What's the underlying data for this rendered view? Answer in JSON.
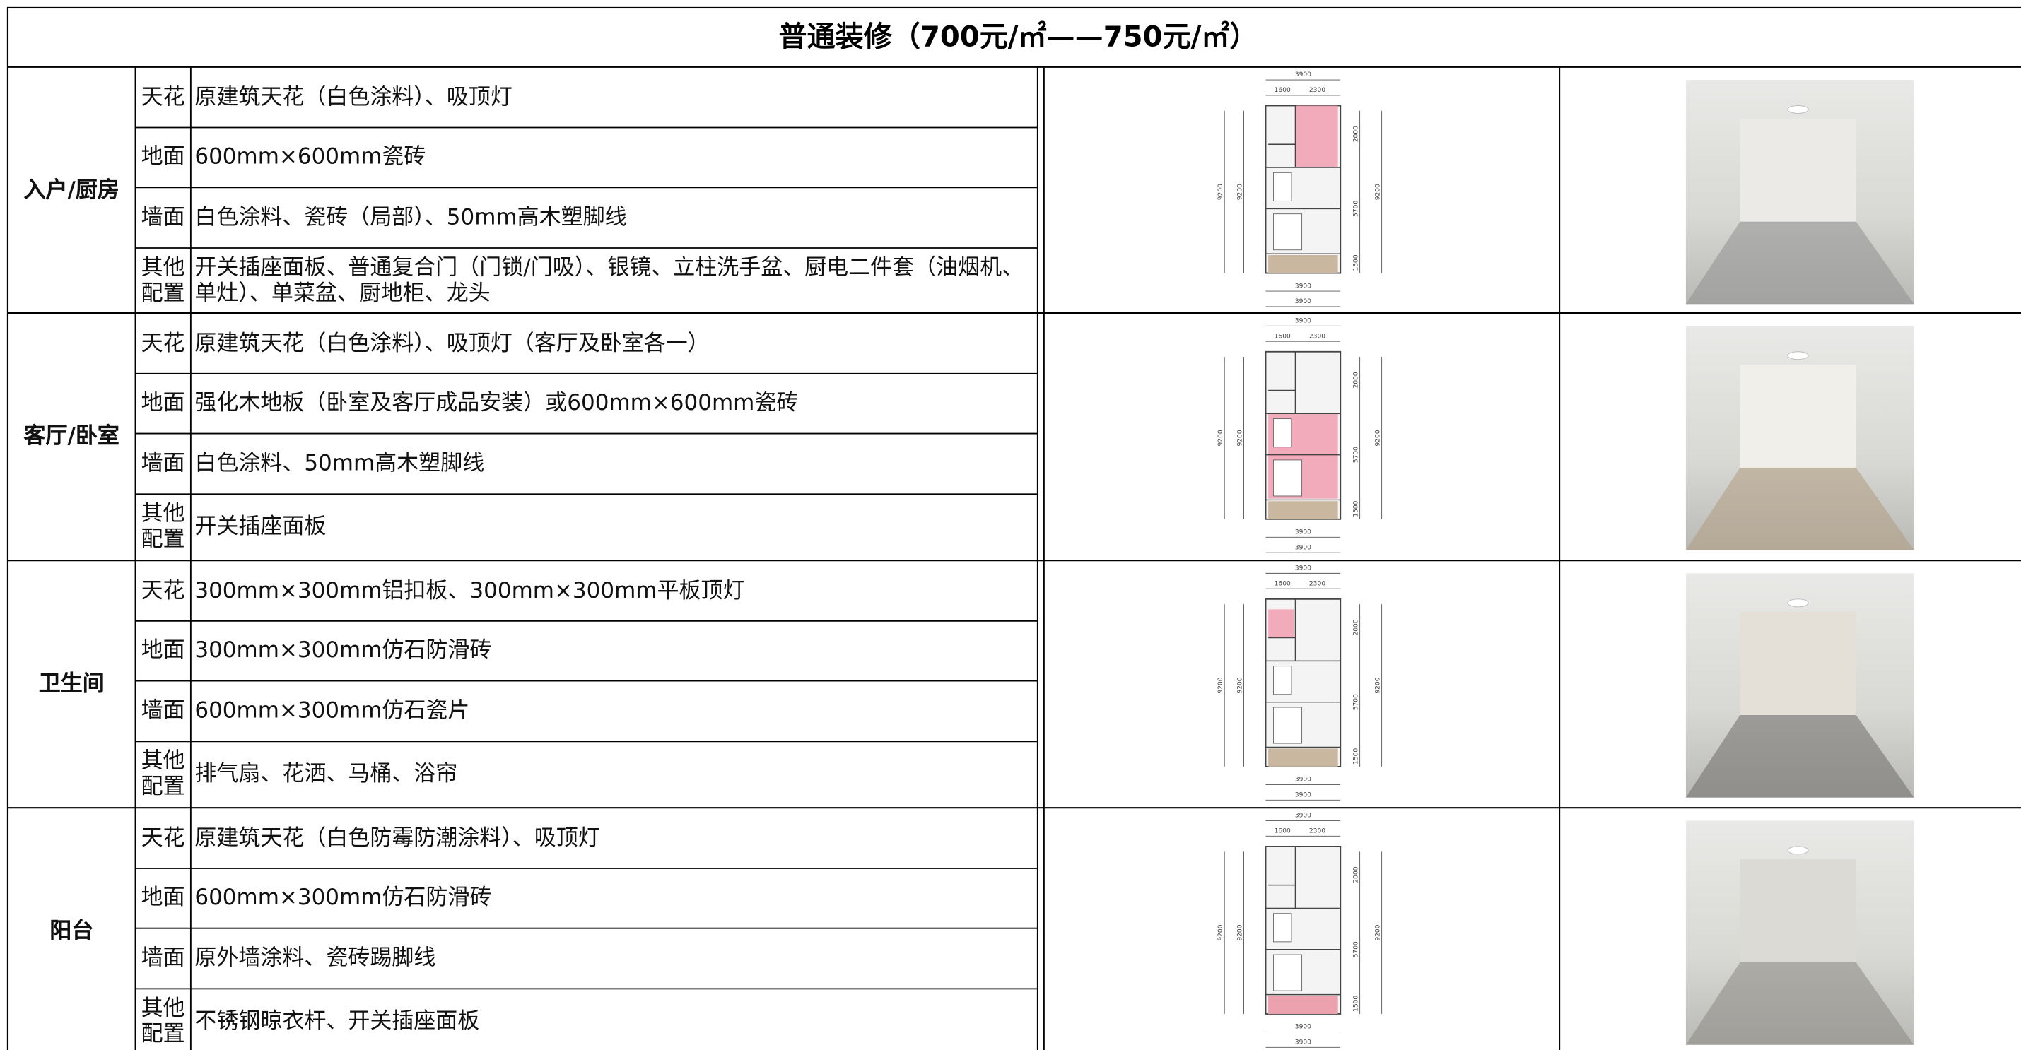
{
  "title": "普通装修（700元/㎡——750元/㎡）",
  "plan_dims": {
    "total_width": "3900",
    "left_width": "1600",
    "right_width": "2300",
    "total_height": "9200",
    "segments": [
      "2000",
      "5700",
      "1500"
    ]
  },
  "sections": [
    {
      "area": "入户/厨房",
      "items": [
        {
          "type": "天花",
          "content": "原建筑天花（白色涂料）、吸顶灯"
        },
        {
          "type": "地面",
          "content": "600mm×600mm瓷砖"
        },
        {
          "type": "墙面",
          "content": "白色涂料、瓷砖（局部）、50mm高木塑脚线"
        },
        {
          "type": "其他配置",
          "content": "开关插座面板、普通复合门（门锁/门吸）、银镜、立柱洗手盆、厨电二件套（油烟机、单灶）、单菜盆、厨地柜、龙头"
        }
      ]
    },
    {
      "area": "客厅/卧室",
      "items": [
        {
          "type": "天花",
          "content": "原建筑天花（白色涂料）、吸顶灯（客厅及卧室各一）"
        },
        {
          "type": "地面",
          "content": "强化木地板（卧室及客厅成品安装）或600mm×600mm瓷砖"
        },
        {
          "type": "墙面",
          "content": "白色涂料、50mm高木塑脚线"
        },
        {
          "type": "其他配置",
          "content": "开关插座面板"
        }
      ]
    },
    {
      "area": "卫生间",
      "items": [
        {
          "type": "天花",
          "content": "300mm×300mm铝扣板、300mm×300mm平板顶灯"
        },
        {
          "type": "地面",
          "content": "300mm×300mm仿石防滑砖"
        },
        {
          "type": "墙面",
          "content": "600mm×300mm仿石瓷片"
        },
        {
          "type": "其他配置",
          "content": "排气扇、花洒、马桶、浴帘"
        }
      ]
    },
    {
      "area": "阳台",
      "items": [
        {
          "type": "天花",
          "content": "原建筑天花（白色防霉防潮涂料）、吸顶灯"
        },
        {
          "type": "地面",
          "content": "600mm×300mm仿石防滑砖"
        },
        {
          "type": "墙面",
          "content": "原外墙涂料、瓷砖踢脚线"
        },
        {
          "type": "其他配置",
          "content": "不锈钢晾衣杆、开关插座面板"
        }
      ]
    }
  ]
}
